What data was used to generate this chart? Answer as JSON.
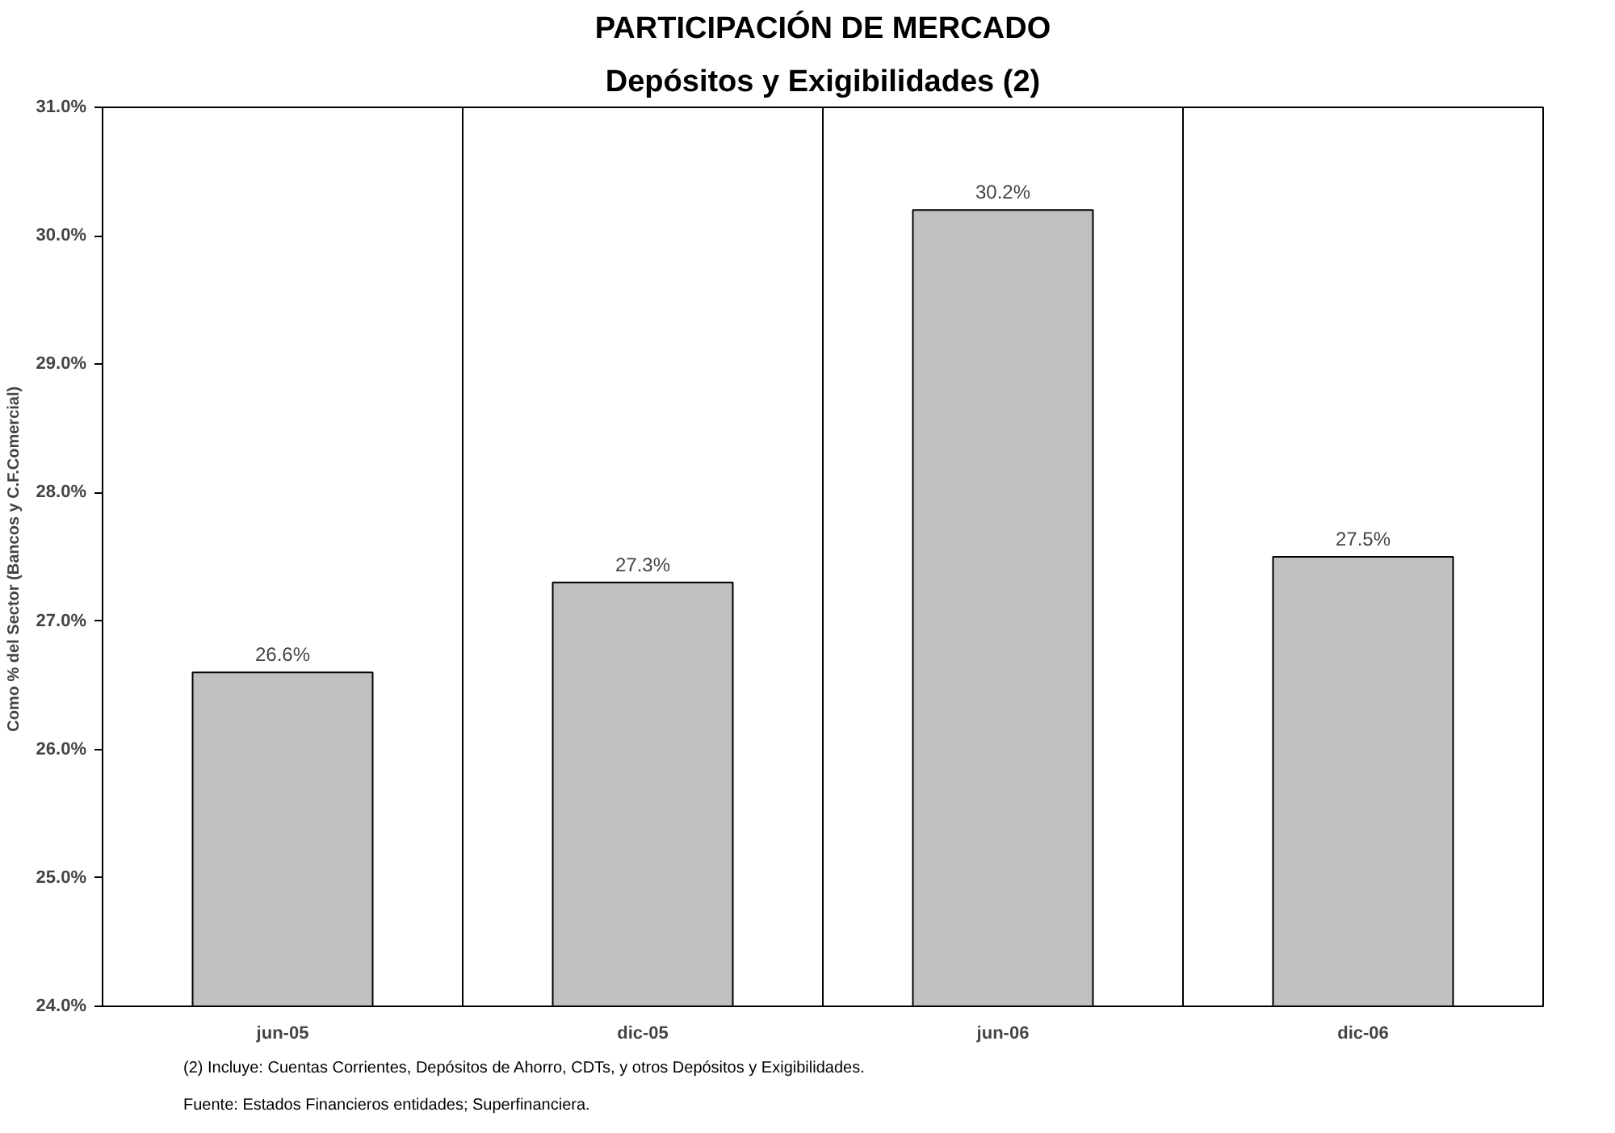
{
  "chart_data": {
    "type": "bar",
    "title": "PARTICIPACIÓN DE MERCADO",
    "subtitle": "Depósitos y Exigibilidades (2)",
    "ylabel": "Como % del Sector (Bancos  y C.F.Comercial)",
    "categories": [
      "jun-05",
      "dic-05",
      "jun-06",
      "dic-06"
    ],
    "values": [
      26.6,
      27.3,
      30.2,
      27.5
    ],
    "value_labels": [
      "26.6%",
      "27.3%",
      "30.2%",
      "27.5%"
    ],
    "color": "#c0c0c0",
    "ylim": [
      24,
      31
    ],
    "yticks": [
      {
        "value": 24,
        "label": "24.0%"
      },
      {
        "value": 25,
        "label": "25.0%"
      },
      {
        "value": 26,
        "label": "26.0%"
      },
      {
        "value": 27,
        "label": "27.0%"
      },
      {
        "value": 28,
        "label": "28.0%"
      },
      {
        "value": 29,
        "label": "29.0%"
      },
      {
        "value": 30,
        "label": "30.0%"
      },
      {
        "value": 31,
        "label": "31.0%"
      }
    ],
    "grid": "x",
    "annotations": [
      "(2) Incluye: Cuentas Corrientes, Depósitos de Ahorro, CDTs, y otros Depósitos y Exigibilidades.",
      "Fuente: Estados Financieros entidades; Superfinanciera."
    ]
  }
}
